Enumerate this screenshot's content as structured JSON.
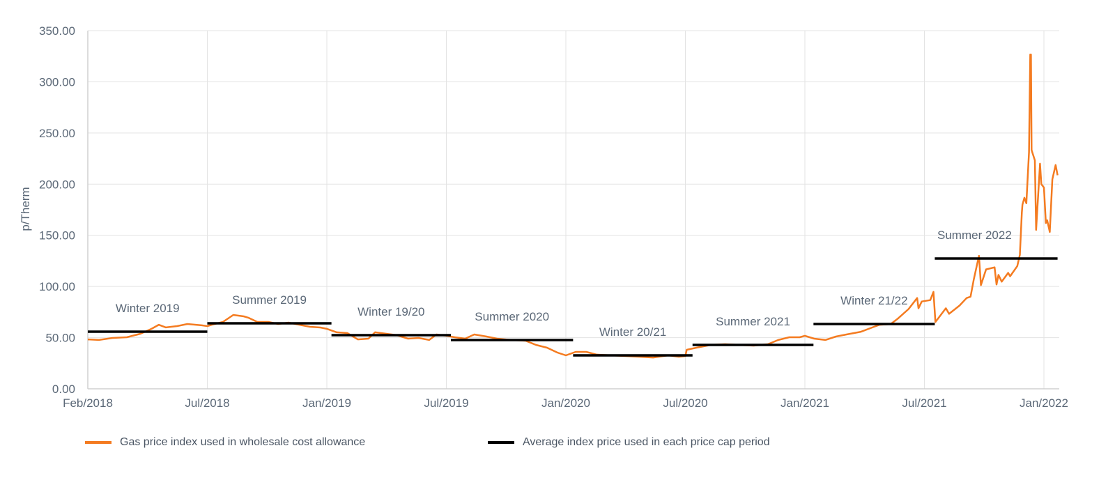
{
  "chart_data": {
    "type": "line",
    "title": "",
    "xlabel": "",
    "ylabel": "p/Therm",
    "ylim": [
      0,
      350
    ],
    "yticks": [
      "0.00",
      "50.00",
      "100.00",
      "150.00",
      "200.00",
      "250.00",
      "300.00",
      "350.00"
    ],
    "ytick_values": [
      0,
      50,
      100,
      150,
      200,
      250,
      300,
      350
    ],
    "xticks": [
      {
        "label": "Feb/2018",
        "date": "2018-02-01"
      },
      {
        "label": "Jul/2018",
        "date": "2018-07-01"
      },
      {
        "label": "Jan/2019",
        "date": "2019-01-01"
      },
      {
        "label": "Jul/2019",
        "date": "2019-07-01"
      },
      {
        "label": "Jan/2020",
        "date": "2020-01-01"
      },
      {
        "label": "Jul/2020",
        "date": "2020-07-01"
      },
      {
        "label": "Jan/2021",
        "date": "2021-01-01"
      },
      {
        "label": "Jul/2021",
        "date": "2021-07-01"
      },
      {
        "label": "Jan/2022",
        "date": "2022-01-01"
      }
    ],
    "xlim": [
      "2018-02-01",
      "2022-01-22"
    ],
    "grid": true,
    "legend_position": "bottom",
    "series": [
      {
        "name": "Gas price index used in wholesale cost allowance",
        "color": "#f47b20",
        "points": [
          [
            "2018-02-01",
            48.3
          ],
          [
            "2018-02-15",
            47.7
          ],
          [
            "2018-03-04",
            49.7
          ],
          [
            "2018-03-22",
            50.4
          ],
          [
            "2018-04-08",
            53.8
          ],
          [
            "2018-04-22",
            58.6
          ],
          [
            "2018-05-01",
            62.6
          ],
          [
            "2018-05-10",
            60.0
          ],
          [
            "2018-05-24",
            61.3
          ],
          [
            "2018-06-06",
            63.3
          ],
          [
            "2018-06-24",
            62.0
          ],
          [
            "2018-07-01",
            61.3
          ],
          [
            "2018-07-08",
            62.6
          ],
          [
            "2018-07-25",
            65.4
          ],
          [
            "2018-08-10",
            72.2
          ],
          [
            "2018-08-26",
            70.8
          ],
          [
            "2018-09-02",
            69.5
          ],
          [
            "2018-09-16",
            65.4
          ],
          [
            "2018-10-03",
            65.4
          ],
          [
            "2018-10-18",
            63.3
          ],
          [
            "2018-11-03",
            64.7
          ],
          [
            "2018-11-20",
            62.6
          ],
          [
            "2018-12-06",
            60.6
          ],
          [
            "2018-12-22",
            59.9
          ],
          [
            "2019-01-01",
            58.6
          ],
          [
            "2019-01-16",
            55.2
          ],
          [
            "2019-02-01",
            54.5
          ],
          [
            "2019-02-17",
            48.3
          ],
          [
            "2019-03-05",
            49.0
          ],
          [
            "2019-03-15",
            55.2
          ],
          [
            "2019-04-01",
            53.8
          ],
          [
            "2019-04-17",
            52.4
          ],
          [
            "2019-05-04",
            49.0
          ],
          [
            "2019-05-20",
            49.7
          ],
          [
            "2019-06-05",
            47.7
          ],
          [
            "2019-06-16",
            53.1
          ],
          [
            "2019-07-01",
            51.8
          ],
          [
            "2019-07-14",
            50.4
          ],
          [
            "2019-07-30",
            49.0
          ],
          [
            "2019-08-13",
            53.1
          ],
          [
            "2019-09-01",
            51.1
          ],
          [
            "2019-09-17",
            49.0
          ],
          [
            "2019-10-09",
            47.7
          ],
          [
            "2019-10-31",
            47.0
          ],
          [
            "2019-11-16",
            42.9
          ],
          [
            "2019-12-03",
            40.2
          ],
          [
            "2019-12-19",
            35.4
          ],
          [
            "2020-01-01",
            32.7
          ],
          [
            "2020-01-16",
            36.1
          ],
          [
            "2020-02-01",
            36.1
          ],
          [
            "2020-02-17",
            33.4
          ],
          [
            "2020-03-10",
            32.7
          ],
          [
            "2020-04-01",
            32.0
          ],
          [
            "2020-04-22",
            31.3
          ],
          [
            "2020-05-13",
            30.6
          ],
          [
            "2020-06-05",
            32.7
          ],
          [
            "2020-06-21",
            31.3
          ],
          [
            "2020-07-01",
            32.0
          ],
          [
            "2020-07-03",
            38.1
          ],
          [
            "2020-07-18",
            40.2
          ],
          [
            "2020-08-09",
            42.9
          ],
          [
            "2020-08-31",
            43.6
          ],
          [
            "2020-09-22",
            42.9
          ],
          [
            "2020-10-14",
            42.2
          ],
          [
            "2020-11-05",
            43.6
          ],
          [
            "2020-11-21",
            47.7
          ],
          [
            "2020-12-08",
            50.4
          ],
          [
            "2020-12-24",
            50.4
          ],
          [
            "2021-01-01",
            51.8
          ],
          [
            "2021-01-15",
            49.0
          ],
          [
            "2021-02-01",
            47.7
          ],
          [
            "2021-02-17",
            51.1
          ],
          [
            "2021-03-05",
            53.1
          ],
          [
            "2021-03-27",
            55.8
          ],
          [
            "2021-04-13",
            59.9
          ],
          [
            "2021-04-24",
            62.6
          ],
          [
            "2021-05-11",
            63.3
          ],
          [
            "2021-05-22",
            68.7
          ],
          [
            "2021-06-07",
            78.0
          ],
          [
            "2021-06-20",
            88.7
          ],
          [
            "2021-06-22",
            78.7
          ],
          [
            "2021-06-27",
            85.3
          ],
          [
            "2021-07-10",
            86.7
          ],
          [
            "2021-07-15",
            94.7
          ],
          [
            "2021-07-18",
            65.3
          ],
          [
            "2021-07-26",
            72.0
          ],
          [
            "2021-08-03",
            78.7
          ],
          [
            "2021-08-08",
            73.3
          ],
          [
            "2021-08-24",
            81.3
          ],
          [
            "2021-09-04",
            88.7
          ],
          [
            "2021-09-10",
            90.0
          ],
          [
            "2021-09-15",
            106.7
          ],
          [
            "2021-09-23",
            130.0
          ],
          [
            "2021-09-26",
            101.3
          ],
          [
            "2021-10-04",
            116.7
          ],
          [
            "2021-10-17",
            118.7
          ],
          [
            "2021-10-20",
            102.0
          ],
          [
            "2021-10-23",
            111.3
          ],
          [
            "2021-10-28",
            104.7
          ],
          [
            "2021-11-07",
            113.3
          ],
          [
            "2021-11-10",
            110.0
          ],
          [
            "2021-11-21",
            120.0
          ],
          [
            "2021-11-25",
            131.0
          ],
          [
            "2021-11-28",
            172.0
          ],
          [
            "2021-11-29",
            180.0
          ],
          [
            "2021-12-02",
            186.7
          ],
          [
            "2021-12-05",
            181.3
          ],
          [
            "2021-12-09",
            231.3
          ],
          [
            "2021-12-11",
            326.7
          ],
          [
            "2021-12-12",
            326.7
          ],
          [
            "2021-12-13",
            233.3
          ],
          [
            "2021-12-18",
            223.3
          ],
          [
            "2021-12-20",
            155.3
          ],
          [
            "2021-12-26",
            220.0
          ],
          [
            "2021-12-28",
            200.0
          ],
          [
            "2022-01-01",
            196.7
          ],
          [
            "2022-01-04",
            162.0
          ],
          [
            "2022-01-06",
            164.7
          ],
          [
            "2022-01-10",
            153.3
          ],
          [
            "2022-01-14",
            204.7
          ],
          [
            "2022-01-19",
            218.7
          ],
          [
            "2022-01-22",
            208.7
          ]
        ]
      },
      {
        "name": "Average index price used in each price cap period",
        "color": "#000000",
        "periods": [
          {
            "label": "Winter 2019",
            "start": "2018-02-01",
            "end": "2018-07-01",
            "value": 55.8
          },
          {
            "label": "Summer 2019",
            "start": "2018-07-01",
            "end": "2019-01-08",
            "value": 64.0
          },
          {
            "label": "Winter 19/20",
            "start": "2019-01-08",
            "end": "2019-07-08",
            "value": 52.4
          },
          {
            "label": "Summer 2020",
            "start": "2019-07-08",
            "end": "2020-01-12",
            "value": 47.7
          },
          {
            "label": "Winter 20/21",
            "start": "2020-01-12",
            "end": "2020-07-12",
            "value": 32.7
          },
          {
            "label": "Summer 2021",
            "start": "2020-07-12",
            "end": "2021-01-14",
            "value": 42.9
          },
          {
            "label": "Winter 21/22",
            "start": "2021-01-14",
            "end": "2021-07-17",
            "value": 63.3
          },
          {
            "label": "Summer 2022",
            "start": "2021-07-17",
            "end": "2022-01-22",
            "value": 127.3
          }
        ]
      }
    ]
  },
  "legend": {
    "gas_index": "Gas price index used in wholesale cost allowance",
    "average_index": "Average index price used in each price cap period"
  }
}
